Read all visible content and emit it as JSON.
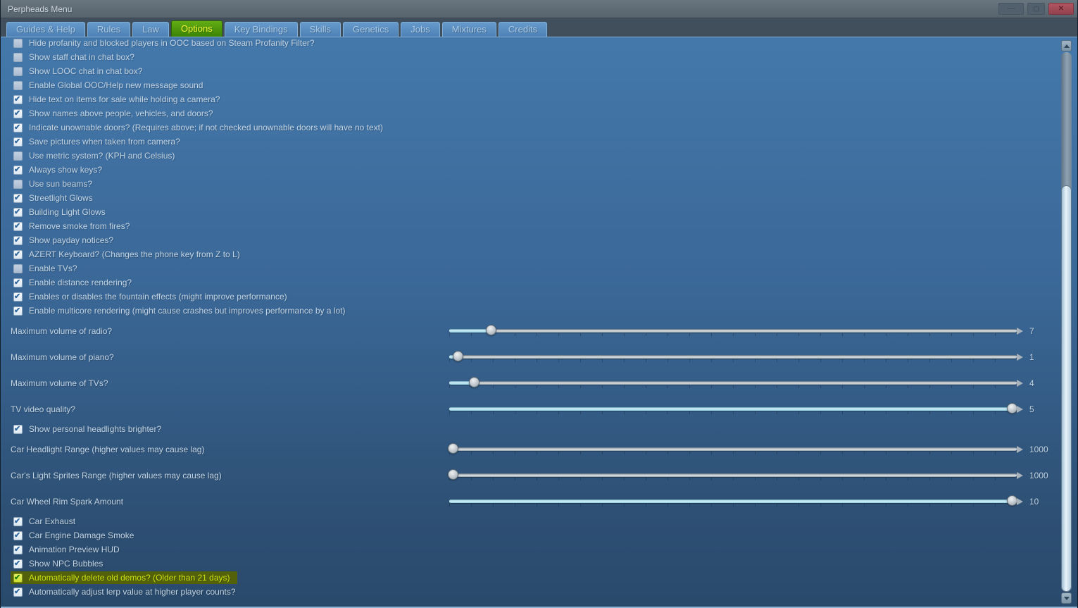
{
  "window": {
    "title": "Perpheads Menu",
    "controls": {
      "minimize": "—",
      "maximize": "▢",
      "close": "✕"
    }
  },
  "tabs": [
    {
      "label": "Guides & Help",
      "active": false
    },
    {
      "label": "Rules",
      "active": false
    },
    {
      "label": "Law",
      "active": false
    },
    {
      "label": "Options",
      "active": true
    },
    {
      "label": "Key Bindings",
      "active": false
    },
    {
      "label": "Skills",
      "active": false
    },
    {
      "label": "Genetics",
      "active": false
    },
    {
      "label": "Jobs",
      "active": false
    },
    {
      "label": "Mixtures",
      "active": false
    },
    {
      "label": "Credits",
      "active": false
    }
  ],
  "colors": {
    "active_tab_green": "#3a8305",
    "active_tab_text": "#f3f93a",
    "highlight_row_bg": "#53620a",
    "highlight_row_text": "#cfe412",
    "slider_fill_cyan": "#8ecfe2",
    "checkbox_check_blue": "#33689e"
  },
  "rows": [
    {
      "type": "checkbox",
      "label": "Hide profanity and blocked players in OOC based on Steam Profanity Filter?",
      "checked": false
    },
    {
      "type": "checkbox",
      "label": "Show staff chat in chat box?",
      "checked": false
    },
    {
      "type": "checkbox",
      "label": "Show LOOC chat in chat box?",
      "checked": false
    },
    {
      "type": "checkbox",
      "label": "Enable Global OOC/Help new message sound",
      "checked": false
    },
    {
      "type": "checkbox",
      "label": "Hide text on items for sale while holding a camera?",
      "checked": true
    },
    {
      "type": "checkbox",
      "label": "Show names above people, vehicles, and doors?",
      "checked": true
    },
    {
      "type": "checkbox",
      "label": "Indicate unownable doors? (Requires above; if not checked unownable doors will have no text)",
      "checked": true
    },
    {
      "type": "checkbox",
      "label": "Save pictures when taken from camera?",
      "checked": true
    },
    {
      "type": "checkbox",
      "label": "Use metric system? (KPH and Celsius)",
      "checked": false
    },
    {
      "type": "checkbox",
      "label": "Always show keys?",
      "checked": true
    },
    {
      "type": "checkbox",
      "label": "Use sun beams?",
      "checked": false
    },
    {
      "type": "checkbox",
      "label": "Streetlight Glows",
      "checked": true
    },
    {
      "type": "checkbox",
      "label": "Building Light Glows",
      "checked": true
    },
    {
      "type": "checkbox",
      "label": "Remove smoke from fires?",
      "checked": true
    },
    {
      "type": "checkbox",
      "label": "Show payday notices?",
      "checked": true
    },
    {
      "type": "checkbox",
      "label": "AZERT Keyboard? (Changes the phone key from Z to L)",
      "checked": true
    },
    {
      "type": "checkbox",
      "label": "Enable TVs?",
      "checked": false
    },
    {
      "type": "checkbox",
      "label": "Enable distance rendering?",
      "checked": true
    },
    {
      "type": "checkbox",
      "label": "Enables or disables the fountain effects (might improve performance)",
      "checked": true
    },
    {
      "type": "checkbox",
      "label": "Enable multicore rendering (might cause crashes but improves performance by a lot)",
      "checked": true
    },
    {
      "type": "slider",
      "label": "Maximum volume of radio?",
      "value": "7",
      "fill_pct": 7.4
    },
    {
      "type": "slider",
      "label": "Maximum volume of piano?",
      "value": "1",
      "fill_pct": 1.6
    },
    {
      "type": "slider",
      "label": "Maximum volume of TVs?",
      "value": "4",
      "fill_pct": 4.5
    },
    {
      "type": "slider",
      "label": "TV video quality?",
      "value": "5",
      "fill_pct": 99.3
    },
    {
      "type": "checkbox",
      "label": "Show personal headlights brighter?",
      "checked": true
    },
    {
      "type": "slider",
      "label": "Car Headlight Range (higher values may cause lag)",
      "value": "1000",
      "fill_pct": 0.7
    },
    {
      "type": "slider",
      "label": "Car's Light Sprites Range (higher values may cause lag)",
      "value": "1000",
      "fill_pct": 0.7
    },
    {
      "type": "slider",
      "label": "Car Wheel Rim Spark Amount",
      "value": "10",
      "fill_pct": 99.3
    },
    {
      "type": "checkbox",
      "label": "Car Exhaust",
      "checked": true
    },
    {
      "type": "checkbox",
      "label": "Car Engine Damage Smoke",
      "checked": true
    },
    {
      "type": "checkbox",
      "label": "Animation Preview HUD",
      "checked": true
    },
    {
      "type": "checkbox",
      "label": "Show NPC Bubbles",
      "checked": true
    },
    {
      "type": "checkbox",
      "label": "Automatically delete old demos? (Older than 21 days)",
      "checked": true,
      "highlighted": true
    },
    {
      "type": "checkbox",
      "label": "Automatically adjust lerp value at higher player counts?",
      "checked": true
    }
  ],
  "scrollbar": {
    "thumb_top_pct": 24.7,
    "thumb_height_pct": 75.3
  },
  "checkbox_check_glyph": "✔"
}
